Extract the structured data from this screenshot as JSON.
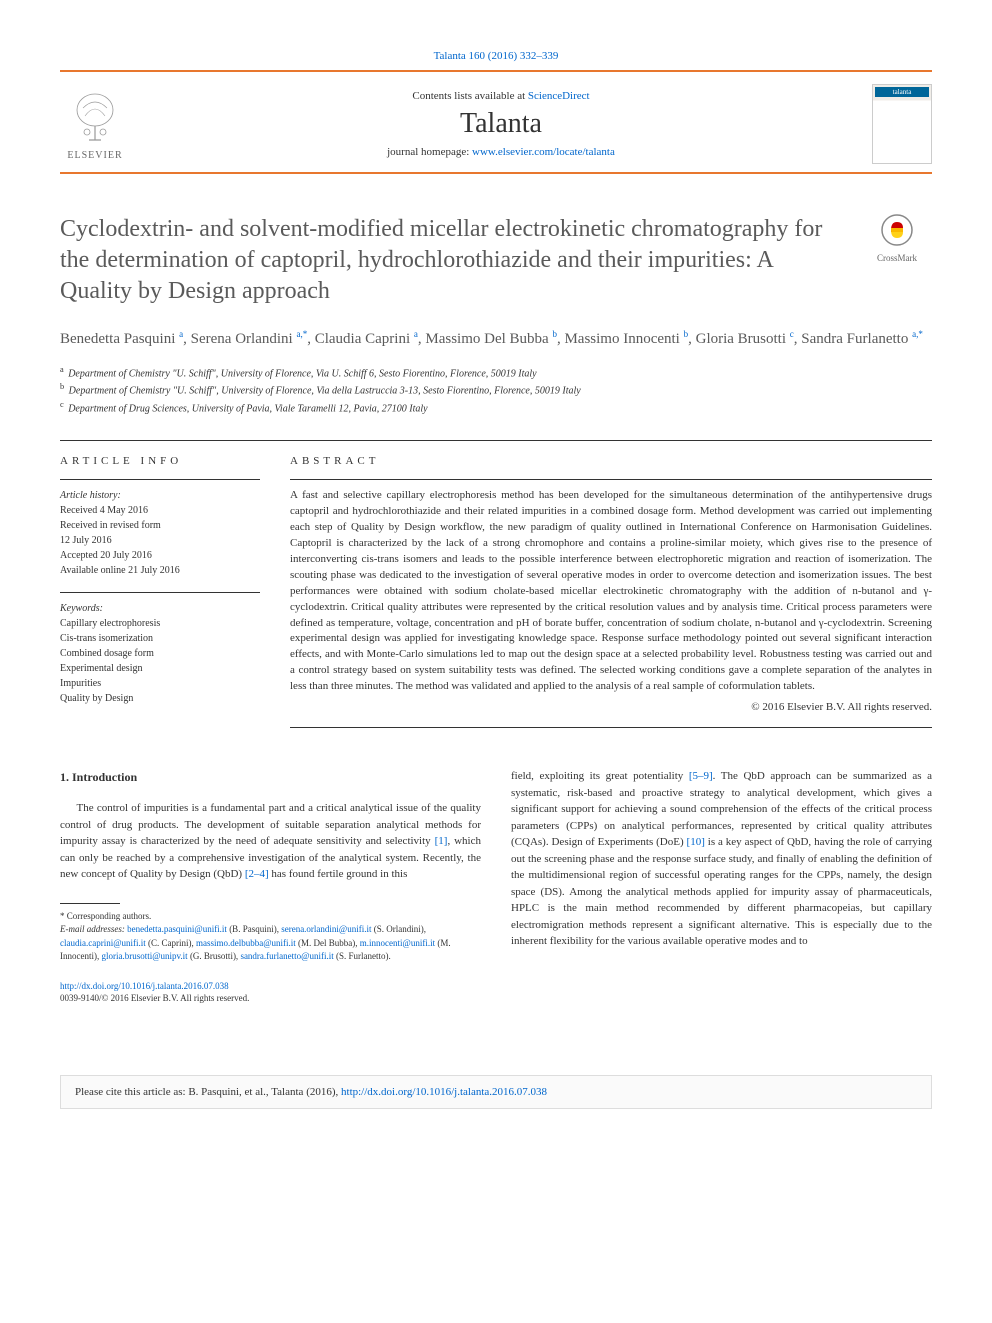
{
  "journal_ref": {
    "prefix": "Talanta 160 (2016) 332–339",
    "link_text": "Talanta 160 (2016) 332–339"
  },
  "header": {
    "contents_line": "Contents lists available at ",
    "contents_link": "ScienceDirect",
    "journal_name": "Talanta",
    "homepage_label": "journal homepage: ",
    "homepage_url": "www.elsevier.com/locate/talanta",
    "elsevier_label": "ELSEVIER",
    "cover_label": "talanta"
  },
  "title": "Cyclodextrin- and solvent-modified micellar electrokinetic chromatography for the determination of captopril, hydrochlorothiazide and their impurities: A Quality by Design approach",
  "crossmark": "CrossMark",
  "authors_html": "Benedetta Pasquini <sup>a</sup>, Serena Orlandini <sup>a,*</sup>, Claudia Caprini <sup>a</sup>, Massimo Del Bubba <sup>b</sup>, Massimo Innocenti <sup>b</sup>, Gloria Brusotti <sup>c</sup>, Sandra Furlanetto <sup>a,*</sup>",
  "affiliations": [
    {
      "sup": "a",
      "text": "Department of Chemistry \"U. Schiff\", University of Florence, Via U. Schiff 6, Sesto Fiorentino, Florence, 50019 Italy"
    },
    {
      "sup": "b",
      "text": "Department of Chemistry \"U. Schiff\", University of Florence, Via della Lastruccia 3-13, Sesto Fiorentino, Florence, 50019 Italy"
    },
    {
      "sup": "c",
      "text": "Department of Drug Sciences, University of Pavia, Viale Taramelli 12, Pavia, 27100 Italy"
    }
  ],
  "article_info_heading": "ARTICLE INFO",
  "history": {
    "label": "Article history:",
    "lines": [
      "Received 4 May 2016",
      "Received in revised form",
      "12 July 2016",
      "Accepted 20 July 2016",
      "Available online 21 July 2016"
    ]
  },
  "keywords": {
    "label": "Keywords:",
    "items": [
      "Capillary electrophoresis",
      "Cis-trans isomerization",
      "Combined dosage form",
      "Experimental design",
      "Impurities",
      "Quality by Design"
    ]
  },
  "abstract_heading": "ABSTRACT",
  "abstract_text": "A fast and selective capillary electrophoresis method has been developed for the simultaneous determination of the antihypertensive drugs captopril and hydrochlorothiazide and their related impurities in a combined dosage form. Method development was carried out implementing each step of Quality by Design workflow, the new paradigm of quality outlined in International Conference on Harmonisation Guidelines. Captopril is characterized by the lack of a strong chromophore and contains a proline-similar moiety, which gives rise to the presence of interconverting cis-trans isomers and leads to the possible interference between electrophoretic migration and reaction of isomerization. The scouting phase was dedicated to the investigation of several operative modes in order to overcome detection and isomerization issues. The best performances were obtained with sodium cholate-based micellar electrokinetic chromatography with the addition of n-butanol and γ-cyclodextrin. Critical quality attributes were represented by the critical resolution values and by analysis time. Critical process parameters were defined as temperature, voltage, concentration and pH of borate buffer, concentration of sodium cholate, n-butanol and γ-cyclodextrin. Screening experimental design was applied for investigating knowledge space. Response surface methodology pointed out several significant interaction effects, and with Monte-Carlo simulations led to map out the design space at a selected probability level. Robustness testing was carried out and a control strategy based on system suitability tests was defined. The selected working conditions gave a complete separation of the analytes in less than three minutes. The method was validated and applied to the analysis of a real sample of coformulation tablets.",
  "copyright": "© 2016 Elsevier B.V. All rights reserved.",
  "intro_heading": "1. Introduction",
  "intro_col1": "The control of impurities is a fundamental part and a critical analytical issue of the quality control of drug products. The development of suitable separation analytical methods for impurity assay is characterized by the need of adequate sensitivity and selectivity [1], which can only be reached by a comprehensive investigation of the analytical system. Recently, the new concept of Quality by Design (QbD) [2–4] has found fertile ground in this",
  "intro_col2": "field, exploiting its great potentiality [5–9]. The QbD approach can be summarized as a systematic, risk-based and proactive strategy to analytical development, which gives a significant support for achieving a sound comprehension of the effects of the critical process parameters (CPPs) on analytical performances, represented by critical quality attributes (CQAs). Design of Experiments (DoE) [10] is a key aspect of QbD, having the role of carrying out the screening phase and the response surface study, and finally of enabling the definition of the multidimensional region of successful operating ranges for the CPPs, namely, the design space (DS). Among the analytical methods applied for impurity assay of pharmaceuticals, HPLC is the main method recommended by different pharmacopeias, but capillary electromigration methods represent a significant alternative. This is especially due to the inherent flexibility for the various available operative modes and to",
  "footnotes": {
    "corresponding": "* Corresponding authors.",
    "email_label": "E-mail addresses: ",
    "emails": [
      {
        "addr": "benedetta.pasquini@unifi.it",
        "name": "(B. Pasquini)"
      },
      {
        "addr": "serena.orlandini@unifi.it",
        "name": "(S. Orlandini)"
      },
      {
        "addr": "claudia.caprini@unifi.it",
        "name": "(C. Caprini)"
      },
      {
        "addr": "massimo.delbubba@unifi.it",
        "name": "(M. Del Bubba)"
      },
      {
        "addr": "m.innocenti@unifi.it",
        "name": "(M. Innocenti)"
      },
      {
        "addr": "gloria.brusotti@unipv.it",
        "name": "(G. Brusotti)"
      },
      {
        "addr": "sandra.furlanetto@unifi.it",
        "name": "(S. Furlanetto)"
      }
    ]
  },
  "doi": {
    "url": "http://dx.doi.org/10.1016/j.talanta.2016.07.038",
    "issn": "0039-9140/© 2016 Elsevier B.V. All rights reserved."
  },
  "citation_footer": {
    "prefix": "Please cite this article as: B. Pasquini, et al., Talanta (2016), ",
    "url": "http://dx.doi.org/10.1016/j.talanta.2016.07.038"
  },
  "colors": {
    "accent_orange": "#e8772e",
    "link_blue": "#0066cc",
    "text_gray": "#5a5a5a",
    "body_text": "#333333"
  },
  "typography": {
    "title_fontsize": 24,
    "body_fontsize": 11,
    "author_fontsize": 15,
    "footnote_fontsize": 9
  }
}
